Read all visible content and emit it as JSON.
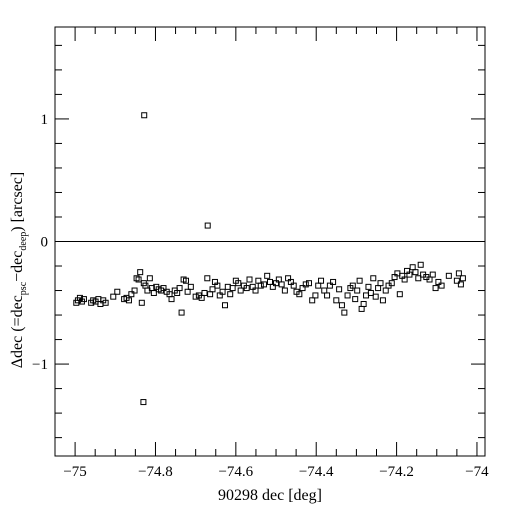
{
  "chart_data": {
    "type": "scatter",
    "title": "",
    "xlabel": "90298 dec [deg]",
    "ylabel": {
      "prefix": "Δdec (=dec",
      "sub1": "psc",
      "mid": "−dec",
      "sub2": "deep",
      "suffix": ") [arcsec]"
    },
    "xlim": [
      -75.05,
      -73.98
    ],
    "ylim": [
      -1.75,
      1.75
    ],
    "x_ticks": [
      -75,
      -74.8,
      -74.6,
      -74.4,
      -74.2,
      -74
    ],
    "x_tick_labels": [
      "−75",
      "−74.8",
      "−74.6",
      "−74.4",
      "−74.2",
      "−74"
    ],
    "y_ticks": [
      -1,
      0,
      1
    ],
    "y_tick_labels": [
      "−1",
      "0",
      "1"
    ],
    "reference_line": {
      "y": 0
    },
    "grid": false,
    "marker": "open-square",
    "points": [
      [
        -74.997,
        -0.5
      ],
      [
        -74.993,
        -0.48
      ],
      [
        -74.988,
        -0.46
      ],
      [
        -74.983,
        -0.49
      ],
      [
        -74.978,
        -0.47
      ],
      [
        -74.96,
        -0.5
      ],
      [
        -74.955,
        -0.48
      ],
      [
        -74.949,
        -0.49
      ],
      [
        -74.942,
        -0.47
      ],
      [
        -74.937,
        -0.51
      ],
      [
        -74.93,
        -0.48
      ],
      [
        -74.924,
        -0.5
      ],
      [
        -74.905,
        -0.45
      ],
      [
        -74.895,
        -0.41
      ],
      [
        -74.878,
        -0.47
      ],
      [
        -74.872,
        -0.46
      ],
      [
        -74.866,
        -0.48
      ],
      [
        -74.86,
        -0.43
      ],
      [
        -74.852,
        -0.4
      ],
      [
        -74.847,
        -0.3
      ],
      [
        -74.842,
        -0.31
      ],
      [
        -74.838,
        -0.25
      ],
      [
        -74.834,
        -0.5
      ],
      [
        -74.829,
        -0.34
      ],
      [
        -74.825,
        -0.36
      ],
      [
        -74.82,
        -0.4
      ],
      [
        -74.814,
        -0.3
      ],
      [
        -74.809,
        -0.38
      ],
      [
        -74.804,
        -0.42
      ],
      [
        -74.798,
        -0.37
      ],
      [
        -74.792,
        -0.39
      ],
      [
        -74.786,
        -0.4
      ],
      [
        -74.78,
        -0.38
      ],
      [
        -74.772,
        -0.41
      ],
      [
        -74.765,
        -0.43
      ],
      [
        -74.76,
        -0.47
      ],
      [
        -74.752,
        -0.4
      ],
      [
        -74.746,
        -0.42
      ],
      [
        -74.74,
        -0.38
      ],
      [
        -74.735,
        -0.58
      ],
      [
        -74.73,
        -0.31
      ],
      [
        -74.724,
        -0.32
      ],
      [
        -74.72,
        -0.41
      ],
      [
        -74.712,
        -0.37
      ],
      [
        -74.7,
        -0.45
      ],
      [
        -74.692,
        -0.44
      ],
      [
        -74.685,
        -0.46
      ],
      [
        -74.678,
        -0.42
      ],
      [
        -74.671,
        -0.3
      ],
      [
        -74.664,
        -0.43
      ],
      [
        -74.658,
        -0.39
      ],
      [
        -74.652,
        -0.33
      ],
      [
        -74.646,
        -0.36
      ],
      [
        -74.64,
        -0.44
      ],
      [
        -74.633,
        -0.41
      ],
      [
        -74.627,
        -0.52
      ],
      [
        -74.62,
        -0.37
      ],
      [
        -74.614,
        -0.43
      ],
      [
        -74.608,
        -0.38
      ],
      [
        -74.6,
        -0.32
      ],
      [
        -74.594,
        -0.34
      ],
      [
        -74.588,
        -0.4
      ],
      [
        -74.58,
        -0.36
      ],
      [
        -74.573,
        -0.38
      ],
      [
        -74.566,
        -0.31
      ],
      [
        -74.558,
        -0.37
      ],
      [
        -74.551,
        -0.4
      ],
      [
        -74.544,
        -0.32
      ],
      [
        -74.538,
        -0.36
      ],
      [
        -74.53,
        -0.35
      ],
      [
        -74.522,
        -0.28
      ],
      [
        -74.515,
        -0.33
      ],
      [
        -74.508,
        -0.37
      ],
      [
        -74.5,
        -0.34
      ],
      [
        -74.493,
        -0.31
      ],
      [
        -74.486,
        -0.35
      ],
      [
        -74.478,
        -0.4
      ],
      [
        -74.47,
        -0.3
      ],
      [
        -74.463,
        -0.33
      ],
      [
        -74.456,
        -0.36
      ],
      [
        -74.449,
        -0.41
      ],
      [
        -74.442,
        -0.43
      ],
      [
        -74.434,
        -0.38
      ],
      [
        -74.426,
        -0.35
      ],
      [
        -74.418,
        -0.34
      ],
      [
        -74.41,
        -0.48
      ],
      [
        -74.402,
        -0.44
      ],
      [
        -74.395,
        -0.36
      ],
      [
        -74.388,
        -0.32
      ],
      [
        -74.38,
        -0.4
      ],
      [
        -74.373,
        -0.44
      ],
      [
        -74.366,
        -0.36
      ],
      [
        -74.358,
        -0.33
      ],
      [
        -74.35,
        -0.48
      ],
      [
        -74.343,
        -0.39
      ],
      [
        -74.336,
        -0.52
      ],
      [
        -74.33,
        -0.58
      ],
      [
        -74.322,
        -0.44
      ],
      [
        -74.315,
        -0.38
      ],
      [
        -74.309,
        -0.36
      ],
      [
        -74.303,
        -0.47
      ],
      [
        -74.298,
        -0.4
      ],
      [
        -74.292,
        -0.32
      ],
      [
        -74.287,
        -0.55
      ],
      [
        -74.282,
        -0.51
      ],
      [
        -74.276,
        -0.44
      ],
      [
        -74.27,
        -0.37
      ],
      [
        -74.264,
        -0.42
      ],
      [
        -74.258,
        -0.3
      ],
      [
        -74.252,
        -0.45
      ],
      [
        -74.246,
        -0.38
      ],
      [
        -74.24,
        -0.34
      ],
      [
        -74.234,
        -0.48
      ],
      [
        -74.227,
        -0.4
      ],
      [
        -74.22,
        -0.36
      ],
      [
        -74.212,
        -0.34
      ],
      [
        -74.205,
        -0.29
      ],
      [
        -74.198,
        -0.26
      ],
      [
        -74.192,
        -0.43
      ],
      [
        -74.186,
        -0.28
      ],
      [
        -74.18,
        -0.31
      ],
      [
        -74.174,
        -0.24
      ],
      [
        -74.168,
        -0.27
      ],
      [
        -74.16,
        -0.21
      ],
      [
        -74.153,
        -0.25
      ],
      [
        -74.146,
        -0.3
      ],
      [
        -74.14,
        -0.19
      ],
      [
        -74.134,
        -0.27
      ],
      [
        -74.126,
        -0.29
      ],
      [
        -74.118,
        -0.31
      ],
      [
        -74.11,
        -0.27
      ],
      [
        -74.103,
        -0.38
      ],
      [
        -74.096,
        -0.33
      ],
      [
        -74.088,
        -0.36
      ],
      [
        -74.07,
        -0.28
      ],
      [
        -74.05,
        -0.32
      ],
      [
        -74.045,
        -0.26
      ],
      [
        -74.04,
        -0.35
      ],
      [
        -74.035,
        -0.3
      ],
      [
        -74.828,
        1.03
      ],
      [
        -74.67,
        0.13
      ],
      [
        -74.83,
        -1.31
      ]
    ]
  }
}
